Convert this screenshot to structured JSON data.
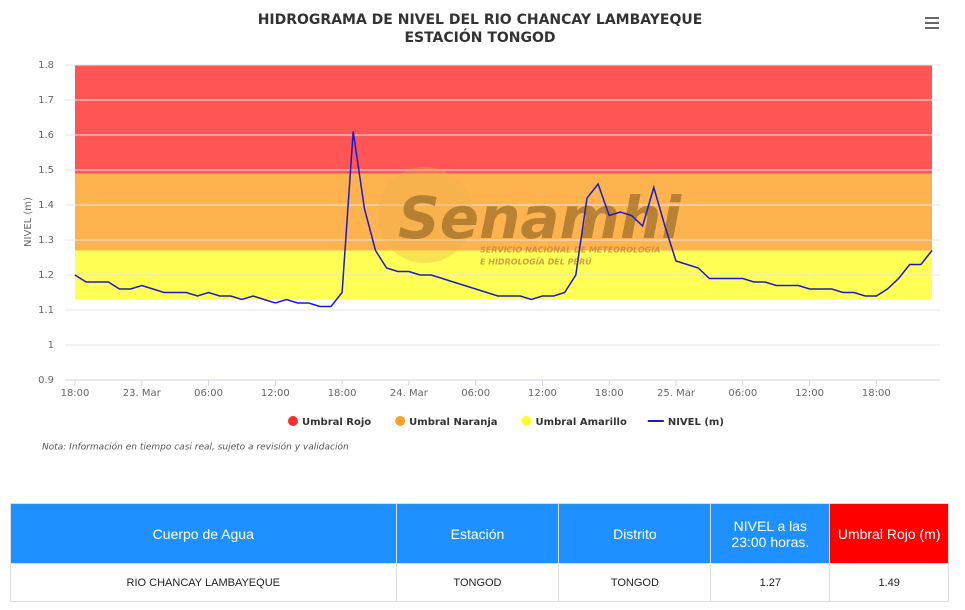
{
  "chart_data": {
    "type": "line",
    "title": [
      "HIDROGRAMA DE NIVEL DEL RIO CHANCAY LAMBAYEQUE",
      "ESTACIÓN TONGOD"
    ],
    "y_label": "NIVEL (m)",
    "note": "Nota: Información en tiempo casi real, sujeto a revisión y validación",
    "watermark": {
      "name": "Senamhi",
      "subtitle": [
        "SERVICIO NACIONAL DE METEOROLOGÍA",
        "E HIDROLOGÍA DEL PERÚ"
      ]
    },
    "categories": [
      "18:00",
      null,
      null,
      null,
      null,
      null,
      "23. Mar",
      null,
      null,
      null,
      null,
      null,
      "06:00",
      null,
      null,
      null,
      null,
      null,
      "12:00",
      null,
      null,
      null,
      null,
      null,
      "18:00",
      null,
      null,
      null,
      null,
      null,
      "24. Mar",
      null,
      null,
      null,
      null,
      null,
      "06:00",
      null,
      null,
      null,
      null,
      null,
      "12:00",
      null,
      null,
      null,
      null,
      null,
      "18:00",
      null,
      null,
      null,
      null,
      null,
      "25. Mar",
      null,
      null,
      null,
      null,
      null,
      "06:00",
      null,
      null,
      null,
      null,
      null,
      "12:00",
      null,
      null,
      null,
      null,
      null,
      "18:00",
      null,
      null,
      null,
      null,
      null
    ],
    "series": [
      {
        "name": "NIVEL (m)",
        "color": "#1a1acc",
        "values": [
          1.2,
          1.18,
          1.18,
          1.18,
          1.16,
          1.16,
          1.17,
          1.16,
          1.15,
          1.15,
          1.15,
          1.14,
          1.15,
          1.14,
          1.14,
          1.13,
          1.14,
          1.13,
          1.12,
          1.13,
          1.12,
          1.12,
          1.11,
          1.11,
          1.15,
          1.61,
          1.39,
          1.27,
          1.22,
          1.21,
          1.21,
          1.2,
          1.2,
          1.19,
          1.18,
          1.17,
          1.16,
          1.15,
          1.14,
          1.14,
          1.14,
          1.13,
          1.14,
          1.14,
          1.15,
          1.2,
          1.42,
          1.46,
          1.37,
          1.38,
          1.37,
          1.34,
          1.45,
          1.34,
          1.24,
          1.23,
          1.22,
          1.19,
          1.19,
          1.19,
          1.19,
          1.18,
          1.18,
          1.17,
          1.17,
          1.17,
          1.16,
          1.16,
          1.16,
          1.15,
          1.15,
          1.14,
          1.14,
          1.16,
          1.19,
          1.23,
          1.23,
          1.27
        ]
      }
    ],
    "bands": [
      {
        "name": "Umbral Rojo",
        "color": "#ff2a2a",
        "from": 1.49,
        "to": 1.8
      },
      {
        "name": "Umbral Naranja",
        "color": "#ffa023",
        "from": 1.27,
        "to": 1.49
      },
      {
        "name": "Umbral Amarillo",
        "color": "#ffff2a",
        "from": 1.13,
        "to": 1.27
      }
    ],
    "ylim": [
      0.9,
      1.8
    ],
    "yticks": [
      0.9,
      1,
      1.1,
      1.2,
      1.3,
      1.4,
      1.5,
      1.6,
      1.7,
      1.8
    ],
    "grid": true
  },
  "table": {
    "headers": [
      "Cuerpo de Agua",
      "Estación",
      "Distrito",
      "NIVEL a las 23:00 horas.",
      "Umbral Rojo (m)"
    ],
    "rows": [
      [
        "RIO CHANCAY LAMBAYEQUE",
        "TONGOD",
        "TONGOD",
        "1.27",
        "1.49"
      ]
    ]
  }
}
